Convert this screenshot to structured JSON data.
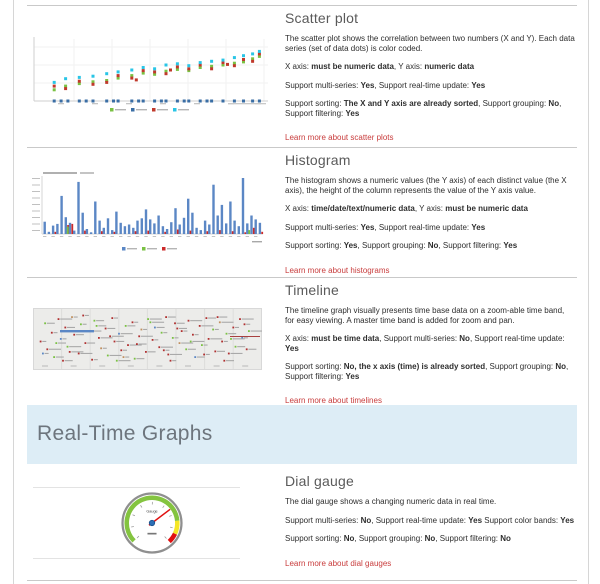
{
  "page": {
    "background": "#ffffff",
    "divider_color": "#c9c9c9",
    "link_color": "#c83c3c"
  },
  "banner": {
    "label": "Real-Time Graphs",
    "bg": "#ddedf6",
    "fg": "#6d757d"
  },
  "sections": [
    {
      "title": "Scatter plot",
      "paragraphs": [
        [
          {
            "t": "The scatter plot shows the correlation between two numbers (X and Y). Each data series (set of data dots) is color coded."
          }
        ],
        [
          {
            "t": "X axis: "
          },
          {
            "t": "must be numeric data",
            "b": true
          },
          {
            "t": ", Y axis: "
          },
          {
            "t": "numeric data",
            "b": true
          }
        ],
        [
          {
            "t": "Support multi-series: "
          },
          {
            "t": "Yes",
            "b": true
          },
          {
            "t": ", Support real-time update: "
          },
          {
            "t": "Yes",
            "b": true
          }
        ],
        [
          {
            "t": "Support sorting: "
          },
          {
            "t": "The X and Y axis are already sorted",
            "b": true
          },
          {
            "t": ", Support grouping: "
          },
          {
            "t": "No",
            "b": true
          },
          {
            "t": ", Support filtering: "
          },
          {
            "t": "Yes",
            "b": true
          }
        ]
      ],
      "link": "Learn more about scatter plots"
    },
    {
      "title": "Histogram",
      "paragraphs": [
        [
          {
            "t": "The histogram shows a numeric values (the Y axis) of each distinct value (the X axis), the height of the column represents the value of the Y axis value."
          }
        ],
        [
          {
            "t": "X axis: "
          },
          {
            "t": "time/date/text/numeric data",
            "b": true
          },
          {
            "t": ", Y axis: "
          },
          {
            "t": "must be numeric data",
            "b": true
          }
        ],
        [
          {
            "t": "Support multi-series: "
          },
          {
            "t": "Yes",
            "b": true
          },
          {
            "t": ", Support real-time update: "
          },
          {
            "t": "Yes",
            "b": true
          }
        ],
        [
          {
            "t": "Support sorting: "
          },
          {
            "t": "Yes",
            "b": true
          },
          {
            "t": ", Support grouping: "
          },
          {
            "t": "No",
            "b": true
          },
          {
            "t": ", Support filtering: "
          },
          {
            "t": "Yes",
            "b": true
          }
        ]
      ],
      "link": "Learn more about histograms"
    },
    {
      "title": "Timeline",
      "paragraphs": [
        [
          {
            "t": "The timeline graph visually presents time base data on a zoom-able time band, for easy viewing. A master time band is added for zoom and pan."
          }
        ],
        [
          {
            "t": "X axis: "
          },
          {
            "t": "must be time data",
            "b": true
          },
          {
            "t": ", Support multi-series: "
          },
          {
            "t": "No",
            "b": true
          },
          {
            "t": ", Support real-time update: "
          },
          {
            "t": "Yes",
            "b": true
          }
        ],
        [
          {
            "t": "Support sorting: "
          },
          {
            "t": "No, the x axis (time) is already sorted",
            "b": true
          },
          {
            "t": ", Support grouping: "
          },
          {
            "t": "No",
            "b": true
          },
          {
            "t": ", Support filtering: "
          },
          {
            "t": "Yes",
            "b": true
          }
        ]
      ],
      "link": "Learn more about timelines"
    },
    {
      "title": "Dial gauge",
      "paragraphs": [
        [
          {
            "t": "The dial gauge shows a changing numeric data in real time."
          }
        ],
        [
          {
            "t": "Support multi-series: "
          },
          {
            "t": "No",
            "b": true
          },
          {
            "t": ", Support real-time update: "
          },
          {
            "t": "Yes",
            "b": true
          },
          {
            "t": " Support color bands: "
          },
          {
            "t": "Yes",
            "b": true
          }
        ],
        [
          {
            "t": "Support sorting: "
          },
          {
            "t": "No",
            "b": true
          },
          {
            "t": ", Support grouping: "
          },
          {
            "t": "No",
            "b": true
          },
          {
            "t": ", Support filtering: "
          },
          {
            "t": "No",
            "b": true
          }
        ]
      ],
      "link": "Learn more about dial gauges"
    }
  ],
  "chart_data": [
    {
      "id": "scatter-thumb",
      "type": "scatter",
      "title": "",
      "note": "thumbnail preview; tick and legend labels illegible at this scale",
      "legend_colors": [
        "#7ac143",
        "#3a6ea5",
        "#c0392b",
        "#29c5e6"
      ],
      "series": [
        {
          "name": "green-series",
          "color": "#7ac143",
          "points": [
            [
              8,
              18
            ],
            [
              13,
              24
            ],
            [
              19,
              28
            ],
            [
              25,
              31
            ],
            [
              31,
              33
            ],
            [
              36,
              37
            ],
            [
              42,
              41
            ],
            [
              47,
              45
            ],
            [
              52,
              43
            ],
            [
              57,
              48
            ],
            [
              62,
              51
            ],
            [
              67,
              49
            ],
            [
              72,
              54
            ],
            [
              77,
              56
            ],
            [
              82,
              58
            ],
            [
              87,
              61
            ],
            [
              91,
              63
            ],
            [
              95,
              68
            ],
            [
              98,
              72
            ]
          ]
        },
        {
          "name": "red-series",
          "color": "#c0392b",
          "points": [
            [
              8,
              24
            ],
            [
              13,
              20
            ],
            [
              19,
              32
            ],
            [
              25,
              27
            ],
            [
              31,
              30
            ],
            [
              36,
              41
            ],
            [
              42,
              37
            ],
            [
              44,
              34
            ],
            [
              47,
              49
            ],
            [
              52,
              47
            ],
            [
              57,
              44
            ],
            [
              59,
              50
            ],
            [
              62,
              55
            ],
            [
              67,
              52
            ],
            [
              72,
              58
            ],
            [
              77,
              52
            ],
            [
              82,
              62
            ],
            [
              84,
              59
            ],
            [
              87,
              57
            ],
            [
              91,
              67
            ],
            [
              95,
              64
            ],
            [
              98,
              76
            ]
          ]
        },
        {
          "name": "cyan-series",
          "color": "#29c5e6",
          "points": [
            [
              8,
              30
            ],
            [
              13,
              36
            ],
            [
              19,
              38
            ],
            [
              25,
              40
            ],
            [
              31,
              44
            ],
            [
              36,
              47
            ],
            [
              42,
              50
            ],
            [
              47,
              54
            ],
            [
              52,
              52
            ],
            [
              57,
              58
            ],
            [
              62,
              60
            ],
            [
              67,
              57
            ],
            [
              72,
              62
            ],
            [
              77,
              64
            ],
            [
              82,
              66
            ],
            [
              87,
              70
            ],
            [
              91,
              73
            ],
            [
              95,
              76
            ],
            [
              98,
              80
            ]
          ]
        },
        {
          "name": "blue-baseline-series",
          "color": "#3a6ea5",
          "points": [
            [
              8,
              0
            ],
            [
              11,
              0
            ],
            [
              14,
              0
            ],
            [
              19,
              0
            ],
            [
              22,
              0
            ],
            [
              25,
              0
            ],
            [
              31,
              0
            ],
            [
              34,
              0
            ],
            [
              36,
              0
            ],
            [
              42,
              0
            ],
            [
              45,
              0
            ],
            [
              47,
              0
            ],
            [
              52,
              0
            ],
            [
              55,
              0
            ],
            [
              57,
              0
            ],
            [
              62,
              0
            ],
            [
              65,
              0
            ],
            [
              67,
              0
            ],
            [
              72,
              0
            ],
            [
              75,
              0
            ],
            [
              77,
              0
            ],
            [
              82,
              0
            ],
            [
              87,
              0
            ],
            [
              91,
              0
            ],
            [
              95,
              0
            ],
            [
              98,
              0
            ]
          ]
        }
      ]
    },
    {
      "id": "histogram-thumb",
      "type": "bar",
      "title": "",
      "note": "thumbnail preview; axis and legend labels illegible at this scale",
      "bar_color": "#5b87c5",
      "red_color": "#cc2a2a",
      "green_color": "#7ac143",
      "values": [
        22,
        4,
        15,
        18,
        68,
        30,
        20,
        6,
        93,
        38,
        9,
        3,
        58,
        24,
        11,
        28,
        7,
        40,
        20,
        14,
        17,
        11,
        24,
        28,
        44,
        26,
        19,
        33,
        14,
        9,
        21,
        46,
        17,
        29,
        63,
        38,
        11,
        7,
        24,
        17,
        88,
        33,
        52,
        19,
        58,
        24,
        14,
        100,
        19,
        33,
        26,
        20
      ],
      "red_values": [
        0,
        0,
        4,
        0,
        0,
        16,
        18,
        0,
        0,
        6,
        0,
        0,
        0,
        5,
        0,
        0,
        4,
        0,
        0,
        0,
        0,
        5,
        0,
        0,
        6,
        0,
        0,
        0,
        4,
        0,
        0,
        8,
        0,
        0,
        6,
        0,
        0,
        0,
        5,
        0,
        0,
        7,
        0,
        0,
        5,
        0,
        0,
        3,
        0,
        11,
        0,
        4
      ],
      "green_values": [
        0,
        0,
        0,
        0,
        0,
        0,
        13,
        0,
        0,
        0,
        0,
        0,
        0,
        0,
        0,
        0,
        0,
        0,
        0,
        0,
        0,
        0,
        0,
        0,
        0,
        0,
        0,
        0,
        0,
        0,
        0,
        0,
        0,
        0,
        0,
        0,
        0,
        0,
        0,
        0,
        0,
        0,
        0,
        0,
        0,
        0,
        0,
        0,
        0,
        7,
        0,
        0
      ]
    },
    {
      "id": "timeline-thumb",
      "type": "scatter",
      "title": "",
      "note": "dense timeline thumbnail; item labels illegible at this scale",
      "bg": "#ececea",
      "colors": [
        "#b03030",
        "#7ac143",
        "#5b87c5",
        "#c09060"
      ],
      "items": [
        [
          3,
          55,
          0
        ],
        [
          5,
          20,
          1
        ],
        [
          6,
          70,
          0
        ],
        [
          8,
          38,
          0
        ],
        [
          9,
          85,
          1
        ],
        [
          11,
          12,
          0
        ],
        [
          12,
          50,
          2
        ],
        [
          14,
          28,
          0
        ],
        [
          15,
          65,
          1
        ],
        [
          17,
          8,
          3
        ],
        [
          18,
          42,
          0
        ],
        [
          20,
          78,
          0
        ],
        [
          21,
          22,
          1
        ],
        [
          23,
          58,
          0
        ],
        [
          24,
          35,
          2
        ],
        [
          26,
          90,
          0
        ],
        [
          27,
          15,
          1
        ],
        [
          29,
          48,
          0
        ],
        [
          30,
          68,
          3
        ],
        [
          32,
          30,
          0
        ],
        [
          33,
          82,
          1
        ],
        [
          35,
          10,
          0
        ],
        [
          36,
          55,
          0
        ],
        [
          38,
          40,
          2
        ],
        [
          39,
          72,
          0
        ],
        [
          41,
          25,
          1
        ],
        [
          42,
          62,
          0
        ],
        [
          44,
          18,
          0
        ],
        [
          45,
          88,
          1
        ],
        [
          47,
          45,
          0
        ],
        [
          48,
          32,
          3
        ],
        [
          50,
          75,
          0
        ],
        [
          51,
          12,
          1
        ],
        [
          53,
          52,
          0
        ],
        [
          54,
          28,
          2
        ],
        [
          56,
          66,
          0
        ],
        [
          57,
          38,
          1
        ],
        [
          59,
          8,
          0
        ],
        [
          60,
          80,
          0
        ],
        [
          62,
          48,
          1
        ],
        [
          63,
          20,
          0
        ],
        [
          65,
          58,
          3
        ],
        [
          66,
          35,
          0
        ],
        [
          68,
          70,
          1
        ],
        [
          69,
          15,
          0
        ],
        [
          71,
          42,
          0
        ],
        [
          72,
          85,
          2
        ],
        [
          74,
          25,
          0
        ],
        [
          75,
          62,
          1
        ],
        [
          77,
          10,
          0
        ],
        [
          78,
          50,
          0
        ],
        [
          80,
          32,
          1
        ],
        [
          81,
          74,
          0
        ],
        [
          83,
          18,
          3
        ],
        [
          84,
          55,
          0
        ],
        [
          86,
          40,
          1
        ],
        [
          87,
          78,
          0
        ],
        [
          89,
          28,
          0
        ],
        [
          90,
          65,
          1
        ],
        [
          92,
          12,
          0
        ],
        [
          93,
          48,
          2
        ],
        [
          95,
          70,
          0
        ],
        [
          96,
          35,
          1
        ],
        [
          4,
          78,
          2
        ],
        [
          10,
          58,
          1
        ],
        [
          16,
          75,
          0
        ],
        [
          22,
          5,
          0
        ],
        [
          28,
          25,
          1
        ],
        [
          34,
          45,
          0
        ],
        [
          40,
          85,
          3
        ],
        [
          46,
          60,
          0
        ],
        [
          52,
          18,
          1
        ],
        [
          58,
          72,
          0
        ],
        [
          64,
          30,
          0
        ],
        [
          70,
          55,
          1
        ],
        [
          76,
          80,
          0
        ],
        [
          82,
          8,
          0
        ],
        [
          88,
          50,
          1
        ],
        [
          94,
          22,
          0
        ],
        [
          13,
          92,
          0
        ],
        [
          37,
          92,
          1
        ],
        [
          61,
          92,
          0
        ],
        [
          85,
          92,
          0
        ]
      ]
    },
    {
      "id": "gauge-thumb",
      "type": "gauge",
      "label": "Gauge",
      "ring_color": "#8f8f8f",
      "needle_color": "#e01010",
      "hub_color": "#2d6fb5",
      "needle_angle": 37,
      "bands": [
        {
          "color": "#84c440",
          "from": 225,
          "to": 5
        },
        {
          "color": "#f5e625",
          "from": 5,
          "to": -25
        },
        {
          "color": "#e01010",
          "from": -25,
          "to": -47
        }
      ]
    }
  ]
}
